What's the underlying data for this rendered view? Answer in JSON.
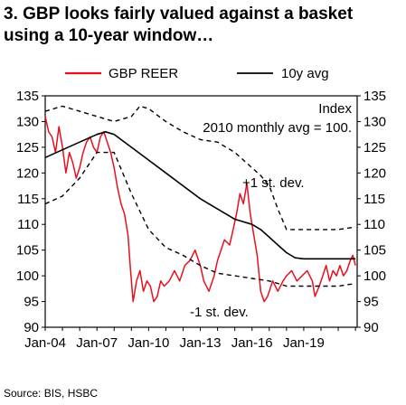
{
  "title_lines": [
    "3. GBP looks fairly valued against a basket",
    "using a 10-year window…"
  ],
  "source": "Source: BIS, HSBC",
  "colors": {
    "reer": "#e8101f",
    "avg": "#000000",
    "band": "#000000"
  },
  "chart_data": {
    "type": "line",
    "legend": [
      "GBP REER",
      "10y avg"
    ],
    "legend_position": "top",
    "y_left_ticks": [
      "135",
      "130",
      "125",
      "120",
      "115",
      "110",
      "105",
      "100",
      "95",
      "90"
    ],
    "y_right_ticks": [
      "135",
      "130",
      "125",
      "120",
      "115",
      "110",
      "105",
      "100",
      "95",
      "90"
    ],
    "x_ticks": [
      "Jan-04",
      "Jan-07",
      "Jan-10",
      "Jan-13",
      "Jan-16",
      "Jan-19"
    ],
    "ylim": [
      90,
      135
    ],
    "xlim": [
      2004.0,
      2022.1
    ],
    "grid": false,
    "annotations": {
      "index_note_1": "Index",
      "index_note_2": "2010 monthly avg = 100.",
      "plus_sd": "+1 st. dev.",
      "minus_sd": "-1 st. dev."
    },
    "series": [
      {
        "name": "GBP REER",
        "style": "solid-red",
        "x": [
          2004.0,
          2004.2,
          2004.4,
          2004.6,
          2004.8,
          2005.0,
          2005.2,
          2005.4,
          2005.6,
          2005.8,
          2006.0,
          2006.2,
          2006.4,
          2006.6,
          2006.8,
          2007.0,
          2007.2,
          2007.4,
          2007.6,
          2007.8,
          2008.0,
          2008.2,
          2008.4,
          2008.6,
          2008.8,
          2008.95,
          2009.1,
          2009.3,
          2009.5,
          2009.7,
          2009.9,
          2010.1,
          2010.3,
          2010.5,
          2010.7,
          2010.9,
          2011.2,
          2011.5,
          2011.8,
          2012.1,
          2012.4,
          2012.7,
          2013.0,
          2013.2,
          2013.5,
          2013.8,
          2014.0,
          2014.2,
          2014.4,
          2014.7,
          2014.9,
          2015.1,
          2015.3,
          2015.5,
          2015.7,
          2015.9,
          2016.1,
          2016.3,
          2016.5,
          2016.7,
          2016.9,
          2017.2,
          2017.5,
          2017.8,
          2018.0,
          2018.3,
          2018.6,
          2018.9,
          2019.2,
          2019.5,
          2019.65,
          2019.9,
          2020.1,
          2020.3,
          2020.5,
          2020.7,
          2020.9,
          2021.1,
          2021.3,
          2021.5,
          2021.7,
          2021.85,
          2022.0
        ],
        "y": [
          131,
          128,
          127,
          124,
          129,
          125,
          120,
          124,
          122,
          119,
          121,
          124,
          126,
          127,
          125,
          124,
          127,
          128,
          126,
          124,
          121,
          117,
          114,
          112,
          108,
          101,
          95,
          99,
          101,
          97,
          99,
          98,
          95,
          96,
          99,
          98,
          99,
          101,
          99,
          102,
          103,
          105,
          102,
          99,
          97,
          100,
          103,
          105,
          107,
          106,
          109,
          112,
          116,
          114,
          118,
          112,
          108,
          104,
          97,
          95,
          96,
          99,
          97,
          99,
          100,
          101,
          99,
          100,
          101,
          99,
          96,
          98,
          100,
          102,
          99,
          101,
          100,
          102,
          100,
          101,
          103,
          104,
          102
        ]
      },
      {
        "name": "10y avg",
        "style": "solid-black",
        "x": [
          2004.0,
          2005.0,
          2006.0,
          2007.0,
          2007.5,
          2008.0,
          2009.0,
          2010.0,
          2011.0,
          2012.0,
          2013.0,
          2014.0,
          2015.0,
          2016.0,
          2016.5,
          2017.0,
          2017.5,
          2018.0,
          2018.5,
          2019.0,
          2019.5,
          2020.0,
          2020.5,
          2021.0,
          2022.0
        ],
        "y": [
          123,
          124.5,
          126,
          127.5,
          128,
          127.5,
          125,
          122.5,
          120,
          117.5,
          115,
          113,
          111,
          110,
          109,
          107.5,
          106,
          104.5,
          103.5,
          103.3,
          103.3,
          103.3,
          103.3,
          103.3,
          103.3
        ]
      },
      {
        "name": "+1 st. dev.",
        "style": "dashed-black",
        "x": [
          2004.0,
          2005.0,
          2006.0,
          2007.0,
          2008.0,
          2009.0,
          2009.5,
          2010.0,
          2011.0,
          2012.0,
          2013.0,
          2014.0,
          2014.5,
          2015.0,
          2016.0,
          2016.5,
          2017.0,
          2017.5,
          2018.0,
          2019.0,
          2020.0,
          2021.0,
          2022.0
        ],
        "y": [
          132,
          133,
          132,
          131,
          130,
          131,
          133,
          132.5,
          130,
          128,
          126.5,
          126,
          125,
          124,
          121,
          119.5,
          117.5,
          113,
          109,
          109,
          109,
          109,
          109.5
        ]
      },
      {
        "name": "-1 st. dev.",
        "style": "dashed-black",
        "x": [
          2004.0,
          2005.0,
          2006.0,
          2007.0,
          2008.0,
          2009.0,
          2010.0,
          2011.0,
          2012.0,
          2013.0,
          2014.0,
          2015.0,
          2016.0,
          2017.0,
          2017.5,
          2018.0,
          2019.0,
          2020.0,
          2021.0,
          2022.0
        ],
        "y": [
          114,
          115.5,
          119,
          124,
          124,
          116,
          109,
          105.5,
          104,
          102,
          100.5,
          100,
          99.5,
          99,
          98.5,
          98,
          98,
          98,
          98,
          98.5
        ]
      }
    ]
  }
}
